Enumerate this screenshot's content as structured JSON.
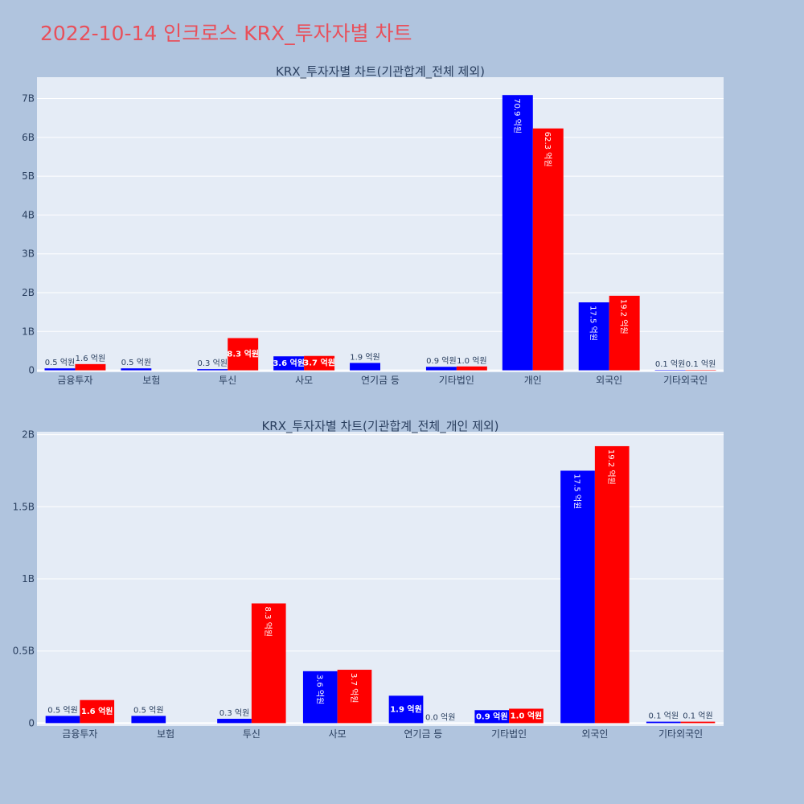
{
  "page_title": "2022-10-14 인크로스 KRX_투자자별 차트",
  "colors": {
    "buy": "#0000ff",
    "sell": "#ff0000",
    "plot_bg": "#e5ecf6",
    "page_bg": "#b0c4de"
  },
  "chart_data": [
    {
      "type": "bar",
      "title": "KRX_투자자별 차트(기관합계_전체 제외)",
      "categories": [
        "금융투자",
        "보험",
        "투신",
        "사모",
        "연기금 등",
        "기타법인",
        "개인",
        "외국인",
        "기타외국인"
      ],
      "series": [
        {
          "values": [
            0.05,
            0.05,
            0.03,
            0.36,
            0.19,
            0.09,
            7.09,
            1.75,
            0.01
          ],
          "labels": [
            "0.5 억원",
            "0.5 억원",
            "0.3 억원",
            "3.6 억원",
            "1.9 억원",
            "0.9 억원",
            "70.9 억원",
            "17.5 억원",
            "0.1 억원"
          ]
        },
        {
          "values": [
            0.16,
            0,
            0.83,
            0.37,
            0,
            0.1,
            6.23,
            1.92,
            0.01
          ],
          "labels": [
            "1.6 억원",
            "",
            "8.3 억원",
            "3.7 억원",
            "",
            "1.0 억원",
            "62.3 억원",
            "19.2 억원",
            "0.1 억원"
          ]
        }
      ],
      "yticks": [
        {
          "v": 0,
          "label": "0"
        },
        {
          "v": 1,
          "label": "1B"
        },
        {
          "v": 2,
          "label": "2B"
        },
        {
          "v": 3,
          "label": "3B"
        },
        {
          "v": 4,
          "label": "4B"
        },
        {
          "v": 5,
          "label": "5B"
        },
        {
          "v": 6,
          "label": "6B"
        },
        {
          "v": 7,
          "label": "7B"
        }
      ],
      "ylim": [
        -0.05,
        7.55
      ]
    },
    {
      "type": "bar",
      "title": "KRX_투자자별 차트(기관합계_전체_개인 제외)",
      "categories": [
        "금융투자",
        "보험",
        "투신",
        "사모",
        "연기금 등",
        "기타법인",
        "외국인",
        "기타외국인"
      ],
      "series": [
        {
          "values": [
            0.05,
            0.05,
            0.03,
            0.36,
            0.19,
            0.09,
            1.75,
            0.01
          ],
          "labels": [
            "0.5 억원",
            "0.5 억원",
            "0.3 억원",
            "3.6 억원",
            "1.9 억원",
            "0.9 억원",
            "17.5 억원",
            "0.1 억원"
          ]
        },
        {
          "values": [
            0.16,
            0,
            0.83,
            0.37,
            0.0,
            0.1,
            1.92,
            0.01
          ],
          "labels": [
            "1.6 억원",
            "",
            "8.3 억원",
            "3.7 억원",
            "0.0 억원",
            "1.0 억원",
            "19.2 억원",
            "0.1 억원"
          ]
        }
      ],
      "yticks": [
        {
          "v": 0,
          "label": "0"
        },
        {
          "v": 0.5,
          "label": "0.5B"
        },
        {
          "v": 1,
          "label": "1B"
        },
        {
          "v": 1.5,
          "label": "1.5B"
        },
        {
          "v": 2,
          "label": "2B"
        }
      ],
      "ylim": [
        -0.02,
        2.02
      ]
    }
  ]
}
